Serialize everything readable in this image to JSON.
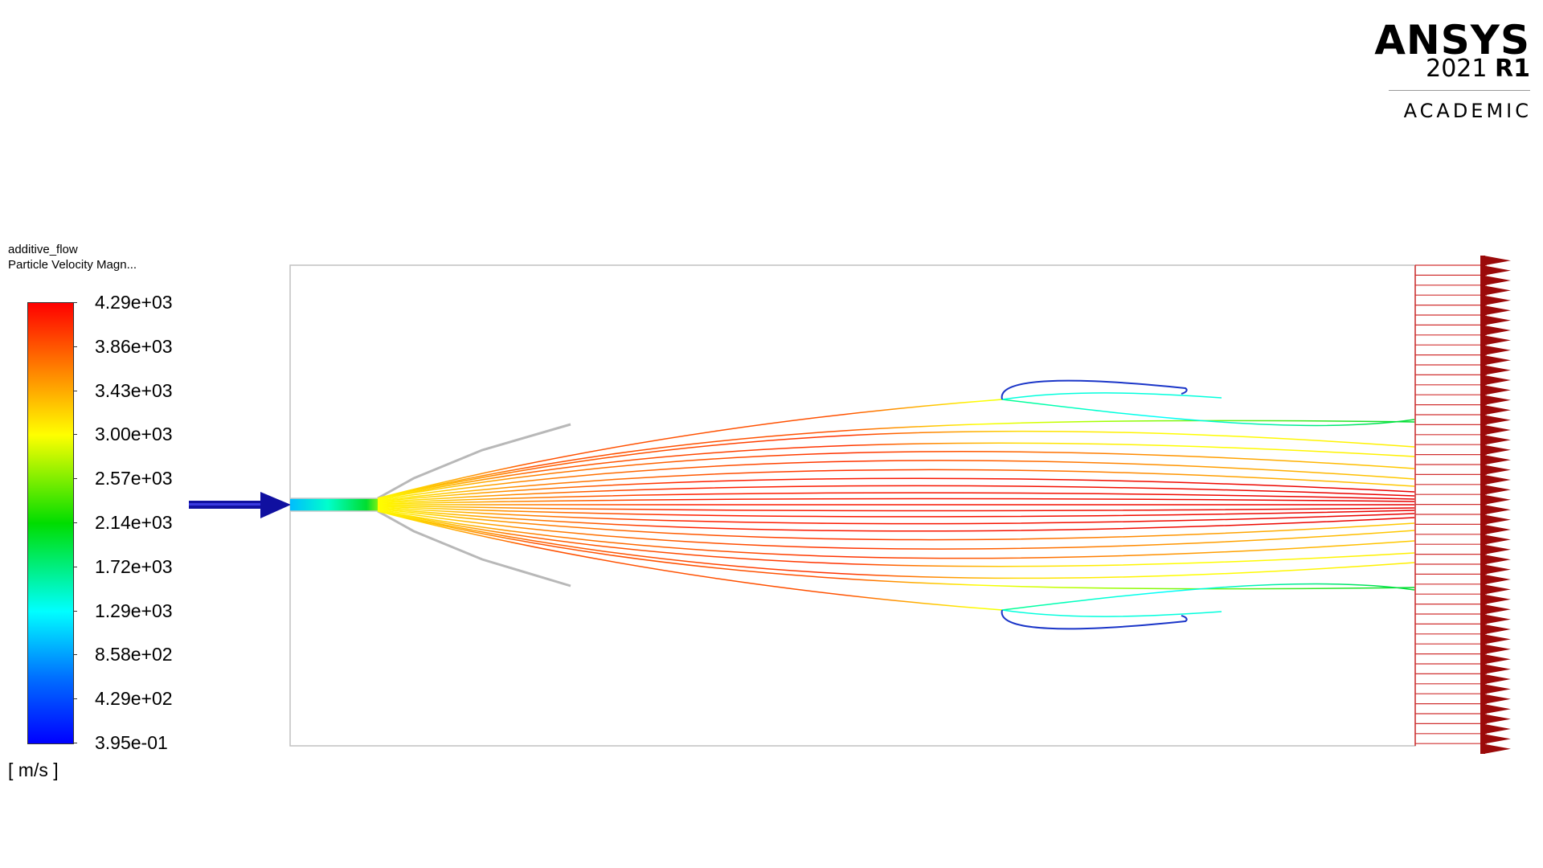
{
  "logo": {
    "brand": "ANSYS",
    "version": "2021",
    "release": "R1",
    "edition": "ACADEMIC"
  },
  "legend": {
    "title": "additive_flow",
    "variable": "Particle Velocity Magn...",
    "units": "[ m/s ]",
    "tick_labels": [
      "4.29e+03",
      "3.86e+03",
      "3.43e+03",
      "3.00e+03",
      "2.57e+03",
      "2.14e+03",
      "1.72e+03",
      "1.29e+03",
      "8.58e+02",
      "4.29e+02",
      "3.95e-01"
    ],
    "colormap": [
      "#ff0000",
      "#ff8000",
      "#ffff00",
      "#00dd00",
      "#00ffff",
      "#0070ff",
      "#0000ff"
    ]
  },
  "colors": {
    "inlet_arrow": "#1010a0",
    "outlet_marker": "#9b0a0a",
    "outlet_lines": "#d03030",
    "domain_border": "#c0c0c0",
    "nozzle": "#b8b8b8"
  }
}
